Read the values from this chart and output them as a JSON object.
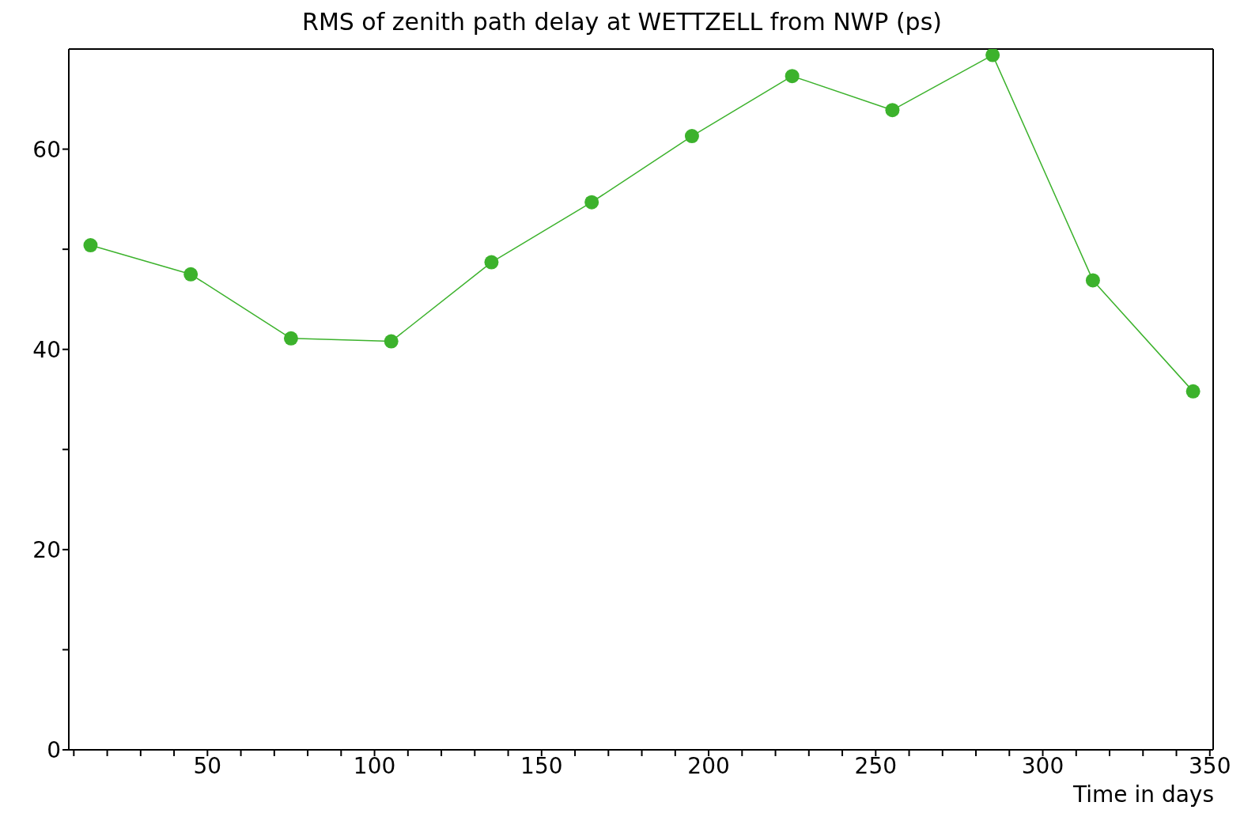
{
  "chart_data": {
    "type": "line",
    "title": "RMS of zenith path delay at WETTZELL from NWP (ps)",
    "xlabel": "Time in days",
    "x": [
      15,
      45,
      75,
      105,
      135,
      165,
      195,
      225,
      255,
      285,
      315,
      345
    ],
    "series": [
      {
        "color": "#3cb22c",
        "values": [
          50.4,
          47.5,
          41.1,
          40.8,
          48.7,
          54.7,
          61.3,
          67.3,
          63.9,
          69.4,
          46.9,
          35.8
        ]
      }
    ],
    "xlim": [
      8.5,
      351
    ],
    "xticks": [
      {
        "value": 10,
        "label": null
      },
      {
        "value": 20,
        "label": null
      },
      {
        "value": 30,
        "label": null
      },
      {
        "value": 40,
        "label": null
      },
      50,
      {
        "value": 60,
        "label": null
      },
      {
        "value": 70,
        "label": null
      },
      {
        "value": 80,
        "label": null
      },
      {
        "value": 90,
        "label": null
      },
      100,
      {
        "value": 110,
        "label": null
      },
      {
        "value": 120,
        "label": null
      },
      {
        "value": 130,
        "label": null
      },
      {
        "value": 140,
        "label": null
      },
      150,
      {
        "value": 160,
        "label": null
      },
      {
        "value": 170,
        "label": null
      },
      {
        "value": 180,
        "label": null
      },
      {
        "value": 190,
        "label": null
      },
      200,
      {
        "value": 210,
        "label": null
      },
      {
        "value": 220,
        "label": null
      },
      {
        "value": 230,
        "label": null
      },
      {
        "value": 240,
        "label": null
      },
      250,
      {
        "value": 260,
        "label": null
      },
      {
        "value": 270,
        "label": null
      },
      {
        "value": 280,
        "label": null
      },
      {
        "value": 290,
        "label": null
      },
      300,
      {
        "value": 310,
        "label": null
      },
      {
        "value": 320,
        "label": null
      },
      {
        "value": 330,
        "label": null
      },
      {
        "value": 340,
        "label": null
      },
      350
    ],
    "ylim": [
      0,
      70
    ],
    "yticks": [
      0,
      {
        "value": 10,
        "label": null
      },
      20,
      {
        "value": 30,
        "label": null
      },
      40,
      {
        "value": 50,
        "label": null
      },
      60
    ],
    "grid": false,
    "legend": false,
    "marker": "circle",
    "line_style": "solid"
  }
}
